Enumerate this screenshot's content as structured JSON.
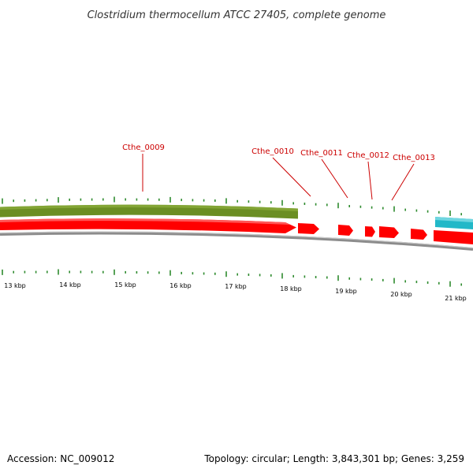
{
  "title": "Clostridium thermocellum ATCC 27405, complete genome",
  "footer": {
    "accession": "Accession: NC_009012",
    "summary": "Topology: circular; Length: 3,843,301 bp; Genes: 3,259"
  },
  "colors": {
    "tick_green": "#2e8b2e",
    "olive_band": "#6b8e23",
    "cyan_band": "#22b8c8",
    "gene_red": "#ff0000",
    "backbone_grey": "#8c8c8c",
    "label_red": "#cc0000"
  },
  "kbp_labels": [
    "13 kbp",
    "14 kbp",
    "15 kbp",
    "16 kbp",
    "17 kbp",
    "18 kbp",
    "19 kbp",
    "20 kbp",
    "21 kbp"
  ],
  "gene_labels": [
    "Cthe_0009",
    "Cthe_0010",
    "Cthe_0011",
    "Cthe_0012",
    "Cthe_0013"
  ]
}
